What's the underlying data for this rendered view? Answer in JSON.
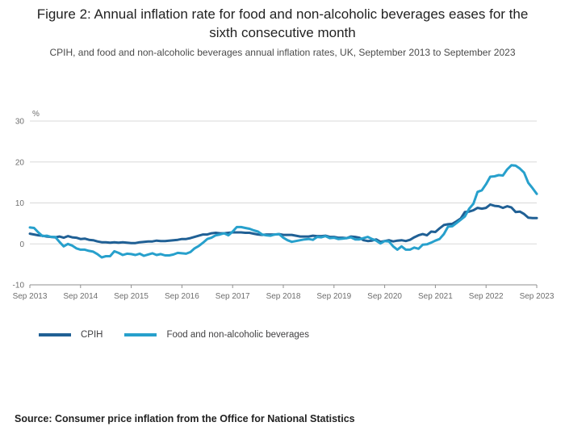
{
  "title": "Figure 2: Annual inflation rate for food and non-alcoholic beverages eases for the sixth consecutive month",
  "subtitle": "CPIH, and food and non-alcoholic beverages annual inflation rates, UK, September 2013 to September 2023",
  "source": "Source: Consumer price inflation from the Office for National Statistics",
  "legend": [
    {
      "label": "CPIH",
      "color": "#206095"
    },
    {
      "label": "Food and non-alcoholic beverages",
      "color": "#27a0cc"
    }
  ],
  "colors": {
    "cpih_line": "#206095",
    "food_line": "#27a0cc",
    "gridline": "#d9d9d9",
    "axis_line": "#8f8f8f",
    "axis_text": "#6e6e6e"
  },
  "chart_data": {
    "type": "line",
    "title": "Figure 2: Annual inflation rate for food and non-alcoholic beverages eases for the sixth consecutive month",
    "subtitle": "CPIH, and food and non-alcoholic beverages annual inflation rates, UK, September 2013 to September 2023",
    "unit_label": "%",
    "ylim": [
      -10,
      30
    ],
    "yticks": [
      30,
      20,
      10,
      0,
      -10
    ],
    "grid": true,
    "legend_position": "bottom",
    "x_frequency": "monthly",
    "x_range": [
      "Sep 2013",
      "Sep 2023"
    ],
    "x_tick_labels": [
      "Sep 2013",
      "Sep 2014",
      "Sep 2015",
      "Sep 2016",
      "Sep 2017",
      "Sep 2018",
      "Sep 2019",
      "Sep 2020",
      "Sep 2021",
      "Sep 2022",
      "Sep 2023"
    ],
    "series": [
      {
        "name": "CPIH",
        "color": "#206095",
        "values": [
          2.5,
          2.3,
          2.1,
          2.0,
          1.8,
          1.7,
          1.6,
          1.8,
          1.5,
          1.9,
          1.6,
          1.5,
          1.2,
          1.3,
          1.0,
          0.9,
          0.6,
          0.4,
          0.4,
          0.3,
          0.4,
          0.3,
          0.4,
          0.3,
          0.2,
          0.2,
          0.4,
          0.5,
          0.6,
          0.6,
          0.8,
          0.7,
          0.7,
          0.8,
          0.9,
          1.0,
          1.2,
          1.2,
          1.4,
          1.7,
          2.0,
          2.3,
          2.3,
          2.6,
          2.7,
          2.6,
          2.6,
          2.7,
          2.8,
          2.8,
          2.8,
          2.7,
          2.7,
          2.5,
          2.3,
          2.2,
          2.3,
          2.3,
          2.3,
          2.4,
          2.2,
          2.2,
          2.2,
          2.0,
          1.8,
          1.8,
          1.8,
          2.0,
          1.9,
          1.9,
          2.0,
          1.7,
          1.7,
          1.5,
          1.5,
          1.4,
          1.8,
          1.7,
          1.5,
          0.9,
          0.7,
          0.8,
          1.1,
          0.5,
          0.7,
          0.9,
          0.6,
          0.8,
          0.9,
          0.7,
          1.0,
          1.6,
          2.1,
          2.4,
          2.1,
          3.0,
          2.9,
          3.8,
          4.6,
          4.8,
          4.9,
          5.5,
          6.2,
          7.8,
          7.9,
          8.2,
          8.8,
          8.6,
          8.8,
          9.6,
          9.3,
          9.2,
          8.8,
          9.2,
          8.9,
          7.8,
          7.9,
          7.3,
          6.4,
          6.3,
          6.3
        ]
      },
      {
        "name": "Food and non-alcoholic beverages",
        "color": "#27a0cc",
        "values": [
          4.0,
          3.9,
          2.8,
          1.9,
          2.0,
          1.7,
          1.7,
          0.5,
          -0.6,
          0.0,
          -0.4,
          -1.1,
          -1.4,
          -1.4,
          -1.7,
          -1.9,
          -2.5,
          -3.3,
          -3.0,
          -3.0,
          -1.8,
          -2.2,
          -2.7,
          -2.4,
          -2.5,
          -2.7,
          -2.4,
          -2.9,
          -2.6,
          -2.3,
          -2.7,
          -2.5,
          -2.8,
          -2.8,
          -2.6,
          -2.2,
          -2.3,
          -2.4,
          -2.0,
          -1.1,
          -0.5,
          0.3,
          1.2,
          1.5,
          2.1,
          2.3,
          2.6,
          2.1,
          3.0,
          4.1,
          4.1,
          3.9,
          3.7,
          3.3,
          3.0,
          2.3,
          2.1,
          2.0,
          2.3,
          2.4,
          1.5,
          0.9,
          0.5,
          0.7,
          0.9,
          1.1,
          1.2,
          1.0,
          1.7,
          1.6,
          1.9,
          1.4,
          1.5,
          1.2,
          1.3,
          1.4,
          1.6,
          1.1,
          1.1,
          1.4,
          1.7,
          1.2,
          0.8,
          0.1,
          0.7,
          0.6,
          -0.6,
          -1.4,
          -0.6,
          -1.4,
          -1.4,
          -0.9,
          -1.2,
          -0.2,
          -0.1,
          0.3,
          0.8,
          1.2,
          2.4,
          4.2,
          4.3,
          5.1,
          5.9,
          6.7,
          8.6,
          9.8,
          12.7,
          13.1,
          14.6,
          16.4,
          16.5,
          16.8,
          16.7,
          18.2,
          19.2,
          19.1,
          18.4,
          17.4,
          14.9,
          13.6,
          12.2
        ]
      }
    ]
  }
}
